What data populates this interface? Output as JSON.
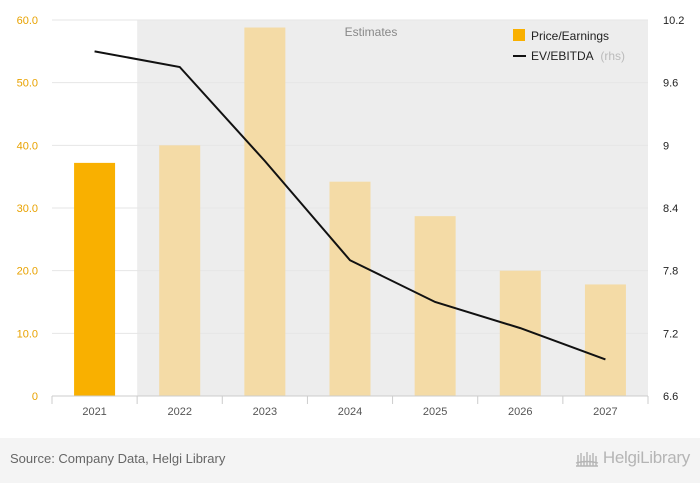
{
  "chart_data": {
    "type": "bar",
    "categories": [
      "2021",
      "2022",
      "2023",
      "2024",
      "2025",
      "2026",
      "2027"
    ],
    "series": [
      {
        "name": "Price/Earnings",
        "type": "bar",
        "axis": "left",
        "values": [
          37.2,
          40.0,
          58.8,
          34.2,
          28.7,
          20.0,
          17.8
        ],
        "estimate_flags": [
          false,
          true,
          true,
          true,
          true,
          true,
          true
        ]
      },
      {
        "name": "EV/EBITDA",
        "type": "line",
        "axis": "right",
        "values": [
          9.9,
          9.75,
          8.85,
          7.9,
          7.5,
          7.25,
          6.95
        ]
      }
    ],
    "ylim_left": [
      0,
      60
    ],
    "ylim_right": [
      6.6,
      10.2
    ],
    "yticks_left": [
      "0",
      "10.0",
      "20.0",
      "30.0",
      "40.0",
      "50.0",
      "60.0"
    ],
    "yticks_right": [
      "6.6",
      "7.2",
      "7.8",
      "8.4",
      "9",
      "9.6",
      "10.2"
    ],
    "estimates_label": "Estimates",
    "estimates_start_category": "2022",
    "legend": {
      "position": "top-right",
      "items": [
        {
          "label": "Price/Earnings",
          "suffix": ""
        },
        {
          "label": "EV/EBITDA",
          "suffix": "(rhs)"
        }
      ]
    },
    "grid": true
  },
  "colors": {
    "bar_actual": "#f9b000",
    "bar_estimate": "#f4dba6",
    "line": "#111111",
    "estimates_bg": "#ededed",
    "left_axis_text": "#e8a200",
    "right_axis_text": "#222222",
    "gridline": "#e6e6e6"
  },
  "footer": {
    "source": "Source: Company Data, Helgi Library",
    "brand": "HelgiLibrary"
  },
  "icons": {
    "brand_logo": "library-building-icon"
  }
}
